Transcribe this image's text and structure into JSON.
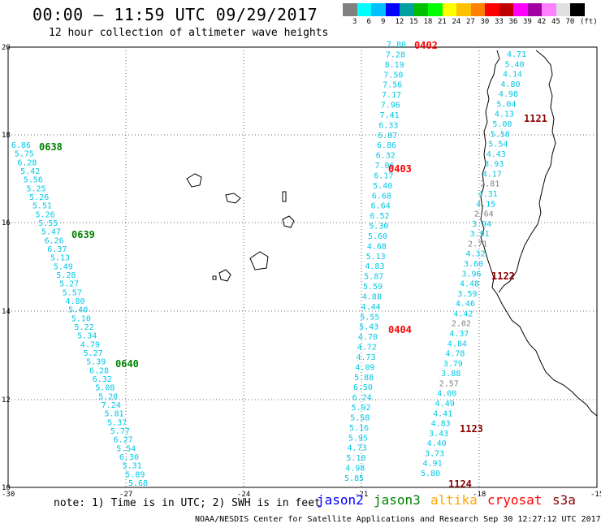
{
  "header": {
    "title": "00:00 – 11:59 UTC 09/29/2017",
    "subtitle": "12 hour collection of altimeter wave heights"
  },
  "legend": {
    "colors": [
      "#808080",
      "#00ffff",
      "#00c0ff",
      "#0000ff",
      "#00a0a0",
      "#00c000",
      "#00ff00",
      "#ffff00",
      "#ffc000",
      "#ff8000",
      "#ff0000",
      "#c00000",
      "#ff00ff",
      "#a000a0",
      "#ff80ff",
      "#e0e0e0",
      "#000000"
    ],
    "labels": [
      "3",
      "6",
      "9",
      "12",
      "15",
      "18",
      "21",
      "24",
      "27",
      "30",
      "33",
      "36",
      "39",
      "42",
      "45",
      "70",
      "(ft)"
    ]
  },
  "axes": {
    "y_labels": [
      "20",
      "18",
      "16",
      "14",
      "12",
      "10"
    ],
    "x_labels": [
      "-30",
      "-27",
      "-24",
      "-21",
      "-18",
      "-15"
    ]
  },
  "tracks": [
    {
      "pass": "0638",
      "pass_color": "#008000",
      "values": [
        "6.86",
        "5.75",
        "6.28",
        "5.42",
        "5.56",
        "5.25",
        "5.26",
        "5.51",
        "5.26",
        "5.55",
        "5.47",
        "6.26",
        "6.37",
        "5.13",
        "5.49",
        "5.28",
        "5.27",
        "5.57",
        "4.80",
        "5.40",
        "5.10",
        "5.22",
        "5.34",
        "4.79",
        "5.27",
        "5.39",
        "6.28",
        "6.32",
        "5.08",
        "5.28",
        "7.24",
        "5.81",
        "5.37",
        "5.77",
        "6.27",
        "5.54",
        "6.30",
        "5.31",
        "5.89",
        "5.68"
      ]
    },
    {
      "pass": "0402",
      "pass_color": "#ff0000",
      "values": [
        "7.80",
        "7.28",
        "8.19",
        "7.50",
        "7.56",
        "7.17",
        "7.96",
        "7.41",
        "6.33",
        "6.87",
        "6.86",
        "6.32",
        "7.06",
        "6.17",
        "5.40",
        "6.68",
        "6.64",
        "6.52",
        "5.30",
        "5.60",
        "4.68",
        "5.13",
        "4.83",
        "5.87",
        "5.59",
        "4.88",
        "4.44",
        "5.55",
        "5.43",
        "4.70",
        "4.72",
        "4.73",
        "4.09",
        "5.88",
        "6.50",
        "6.24",
        "5.92",
        "5.58",
        "5.16",
        "5.95",
        "4.73",
        "5.10",
        "4.98",
        "5.85"
      ]
    },
    {
      "pass": "1121",
      "pass_color": "#8b0000",
      "values": [
        "4.71",
        "5.40",
        "4.14",
        "4.80",
        "4.98",
        "5.04",
        "4.13",
        "5.00",
        "5.58",
        "5.54",
        "4.43",
        "3.93",
        "4.17",
        "2.81",
        "4.31",
        "4.15",
        "2.64",
        "3.94",
        "3.91",
        "2.71",
        "4.32",
        "3.60",
        "3.96",
        "4.48",
        "3.59",
        "4.46",
        "4.42",
        "2.02",
        "4.37",
        "4.84",
        "4.78",
        "3.79",
        "3.88",
        "2.57",
        "4.00",
        "4.49",
        "4.41",
        "4.83",
        "3.43",
        "4.40",
        "3.73",
        "4.91",
        "5.80"
      ]
    }
  ],
  "pass_labels": [
    "0638",
    "0639",
    "0640",
    "0402",
    "0403",
    "0404",
    "1121",
    "1122",
    "1123",
    "1124"
  ],
  "note": "note: 1) Time is in UTC; 2) SWH is in feet",
  "satellites": [
    {
      "name": "jason2",
      "color": "#0000ff"
    },
    {
      "name": "jason3",
      "color": "#008000"
    },
    {
      "name": "altika",
      "color": "#ffa500"
    },
    {
      "name": "cryosat",
      "color": "#ff0000"
    },
    {
      "name": "s3a",
      "color": "#8b0000"
    }
  ],
  "credit": "NOAA/NESDIS Center for Satellite Applications and Research   Sep 30 12:27:12 UTC 2017"
}
